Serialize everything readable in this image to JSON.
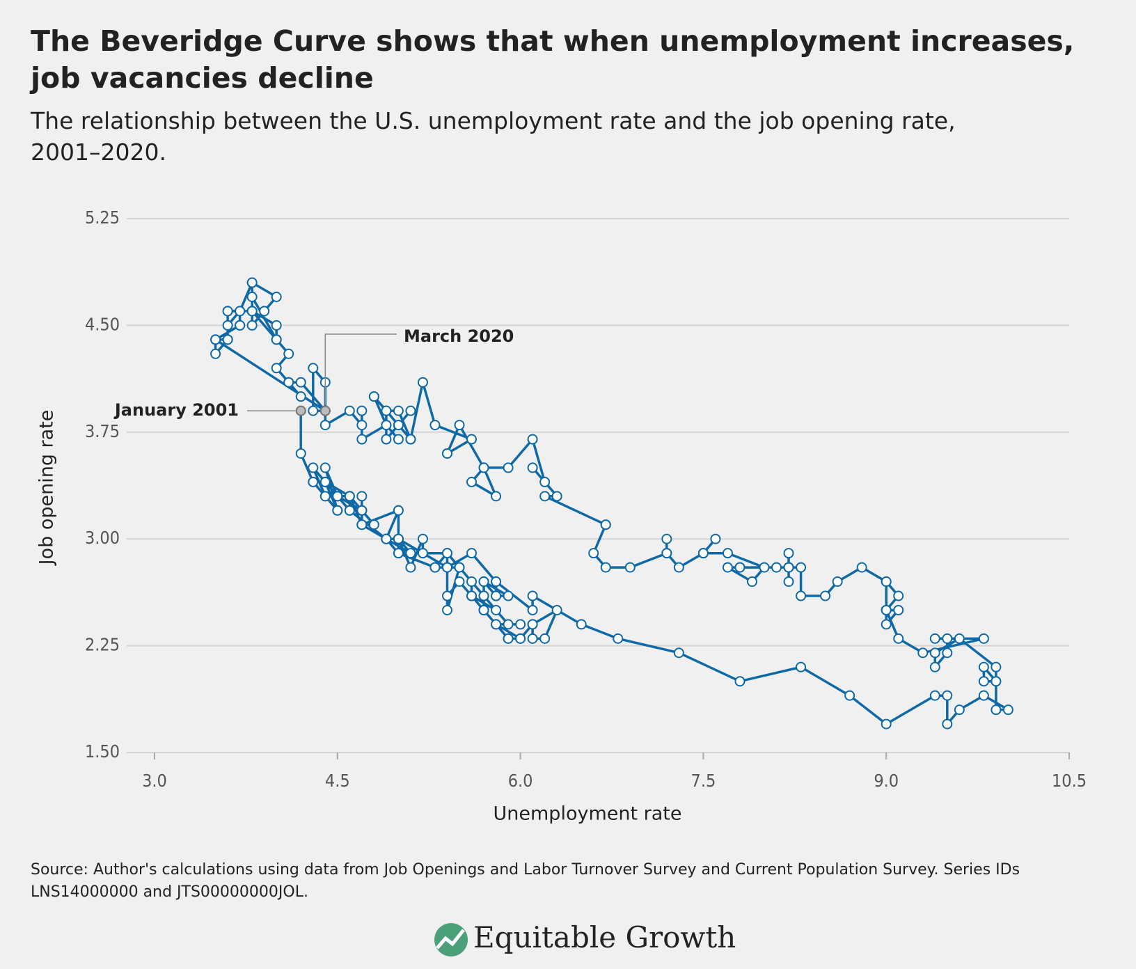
{
  "title": "The Beveridge Curve shows that when unemployment increases, job vacancies decline",
  "subtitle": "The relationship between the U.S. unemployment rate and the job opening rate, 2001–2020.",
  "source": "Source: Author's calculations using data from Job Openings and Labor Turnover Survey and Current Population Survey. Series IDs LNS14000000 and JTS00000000JOL.",
  "logo": "Equitable Growth",
  "chart_data": {
    "type": "line",
    "x_label": "Unemployment rate",
    "y_label": "Job opening rate",
    "color": "#0f69a6",
    "xlim": [
      3.0,
      10.5
    ],
    "ylim": [
      1.5,
      5.25
    ],
    "xticks": [
      {
        "value": 3,
        "label": "3.0"
      },
      4.5,
      {
        "value": 6,
        "label": "6.0"
      },
      7.5,
      {
        "value": 9,
        "label": "9.0"
      },
      10.5
    ],
    "yticks": [
      {
        "value": 1.5,
        "label": "1.50"
      },
      2.25,
      {
        "value": 3,
        "label": "3.00"
      },
      3.75,
      {
        "value": 4.5,
        "label": "4.50"
      },
      5.25
    ],
    "grid": true,
    "x": [
      4.2,
      4.2,
      4.3,
      4.4,
      4.3,
      4.5,
      4.6,
      4.9,
      5.0,
      5.3,
      5.5,
      5.7,
      5.7,
      5.7,
      5.7,
      5.9,
      5.8,
      5.8,
      5.8,
      5.7,
      5.7,
      5.7,
      5.9,
      6.0,
      5.8,
      5.9,
      5.9,
      6.0,
      6.1,
      6.3,
      6.2,
      6.1,
      6.1,
      6.0,
      5.8,
      5.7,
      5.7,
      5.6,
      5.8,
      5.6,
      5.6,
      5.6,
      5.5,
      5.4,
      5.4,
      5.5,
      5.4,
      5.4,
      5.3,
      5.4,
      5.2,
      5.2,
      5.1,
      5.0,
      5.0,
      4.9,
      5.0,
      5.0,
      5.0,
      4.9,
      4.7,
      4.8,
      4.7,
      4.7,
      4.6,
      4.6,
      4.7,
      4.7,
      4.5,
      4.4,
      4.5,
      4.4,
      4.6,
      4.5,
      4.4,
      4.5,
      4.4,
      4.6,
      4.7,
      4.6,
      4.7,
      4.7,
      4.7,
      5.0,
      5.0,
      4.9,
      5.1,
      5.0,
      5.4,
      5.6,
      5.8,
      6.1,
      6.1,
      6.5,
      6.8,
      7.3,
      7.8,
      8.3,
      8.7,
      9.0,
      9.4,
      9.5,
      9.5,
      9.6,
      9.8,
      10.0,
      9.9,
      9.9,
      9.8,
      9.8,
      9.9,
      9.9,
      9.6,
      9.4,
      9.4,
      9.5,
      9.5,
      9.4,
      9.8,
      9.3,
      9.1,
      9.0,
      9.0,
      9.1,
      9.0,
      9.1,
      9.0,
      9.0,
      9.0,
      8.8,
      8.6,
      8.5,
      8.3,
      8.3,
      8.2,
      8.2,
      8.2,
      8.2,
      8.2,
      8.1,
      7.8,
      7.8,
      7.7,
      7.9,
      8.0,
      7.7,
      7.5,
      7.6,
      7.5,
      7.5,
      7.3,
      7.2,
      7.2,
      7.2,
      6.9,
      6.7,
      6.6,
      6.7,
      6.7,
      6.2,
      6.3,
      6.1,
      6.2,
      6.1,
      5.9,
      5.7,
      5.8,
      5.6,
      5.7,
      5.5,
      5.4,
      5.4,
      5.6,
      5.3,
      5.2,
      5.1,
      5.0,
      5.0,
      5.1,
      5.0,
      4.9,
      4.9,
      5.0,
      5.1,
      4.8,
      4.9,
      4.8,
      4.9,
      5.0,
      4.9,
      4.7,
      4.7,
      4.7,
      4.6,
      4.4,
      4.4,
      4.4,
      4.3,
      4.3,
      4.4,
      4.2,
      4.1,
      4.2,
      4.1,
      4.0,
      4.1,
      4.0,
      4.0,
      3.8,
      4.0,
      3.8,
      3.8,
      3.7,
      3.8,
      3.8,
      3.9,
      4.0,
      3.8,
      3.8,
      3.6,
      3.6,
      3.7,
      3.7,
      3.7,
      3.5,
      3.6,
      3.6,
      3.6,
      3.5,
      3.5,
      4.4
    ],
    "values": [
      3.9,
      3.6,
      3.4,
      3.3,
      3.5,
      3.3,
      3.2,
      3.0,
      2.9,
      2.8,
      2.8,
      2.6,
      2.6,
      2.5,
      2.7,
      2.6,
      2.6,
      2.7,
      2.6,
      2.7,
      2.5,
      2.6,
      2.4,
      2.4,
      2.4,
      2.3,
      2.3,
      2.3,
      2.4,
      2.5,
      2.3,
      2.3,
      2.4,
      2.3,
      2.4,
      2.5,
      2.5,
      2.6,
      2.5,
      2.6,
      2.7,
      2.6,
      2.7,
      2.6,
      2.9,
      2.8,
      2.5,
      2.8,
      2.8,
      2.9,
      2.9,
      3.0,
      2.8,
      3.0,
      3.0,
      3.0,
      2.9,
      3.0,
      3.2,
      3.0,
      3.1,
      3.1,
      3.2,
      3.2,
      3.2,
      3.3,
      3.1,
      3.2,
      3.3,
      3.3,
      3.2,
      3.4,
      3.3,
      3.3,
      3.5,
      3.2,
      3.4,
      3.3,
      3.2,
      3.3,
      3.2,
      3.3,
      3.1,
      3.2,
      3.0,
      3.0,
      2.9,
      3.0,
      2.8,
      2.9,
      2.7,
      2.5,
      2.6,
      2.4,
      2.3,
      2.2,
      2.0,
      2.1,
      1.9,
      1.7,
      1.9,
      1.9,
      1.7,
      1.8,
      1.9,
      1.8,
      1.8,
      2.0,
      2.1,
      2.0,
      2.0,
      2.1,
      2.3,
      2.2,
      2.1,
      2.2,
      2.3,
      2.3,
      2.3,
      2.2,
      2.3,
      2.5,
      2.4,
      2.5,
      2.5,
      2.6,
      2.7,
      2.5,
      2.7,
      2.8,
      2.7,
      2.6,
      2.6,
      2.8,
      2.8,
      2.7,
      2.9,
      2.8,
      2.8,
      2.8,
      2.8,
      2.8,
      2.8,
      2.7,
      2.8,
      2.9,
      2.9,
      3.0,
      2.9,
      2.9,
      2.8,
      2.9,
      3.0,
      2.9,
      2.8,
      2.8,
      2.9,
      3.1,
      3.1,
      3.3,
      3.3,
      3.5,
      3.4,
      3.7,
      3.5,
      3.5,
      3.3,
      3.4,
      3.5,
      3.8,
      3.6,
      3.6,
      3.7,
      3.8,
      4.1,
      3.7,
      3.8,
      3.8,
      3.9,
      3.8,
      3.7,
      3.9,
      3.9,
      3.7,
      4.0,
      3.9,
      4.0,
      3.8,
      3.7,
      3.8,
      3.7,
      3.9,
      3.8,
      3.9,
      3.8,
      3.9,
      4.1,
      4.2,
      3.9,
      3.9,
      4.1,
      4.1,
      4.0,
      4.1,
      4.2,
      4.3,
      4.4,
      4.5,
      4.6,
      4.4,
      4.7,
      4.6,
      4.6,
      4.8,
      4.5,
      4.6,
      4.7,
      4.8,
      4.6,
      4.6,
      4.5,
      4.6,
      4.5,
      4.5,
      4.4,
      4.4,
      4.6,
      4.4,
      4.3,
      4.4,
      3.9
    ],
    "annotations": [
      {
        "text": "January 2001",
        "x": 4.2,
        "y": 3.9,
        "color": "#e8532a"
      },
      {
        "text": "March 2020",
        "x": 4.4,
        "y": 3.9,
        "color": "#e8532a"
      }
    ]
  }
}
